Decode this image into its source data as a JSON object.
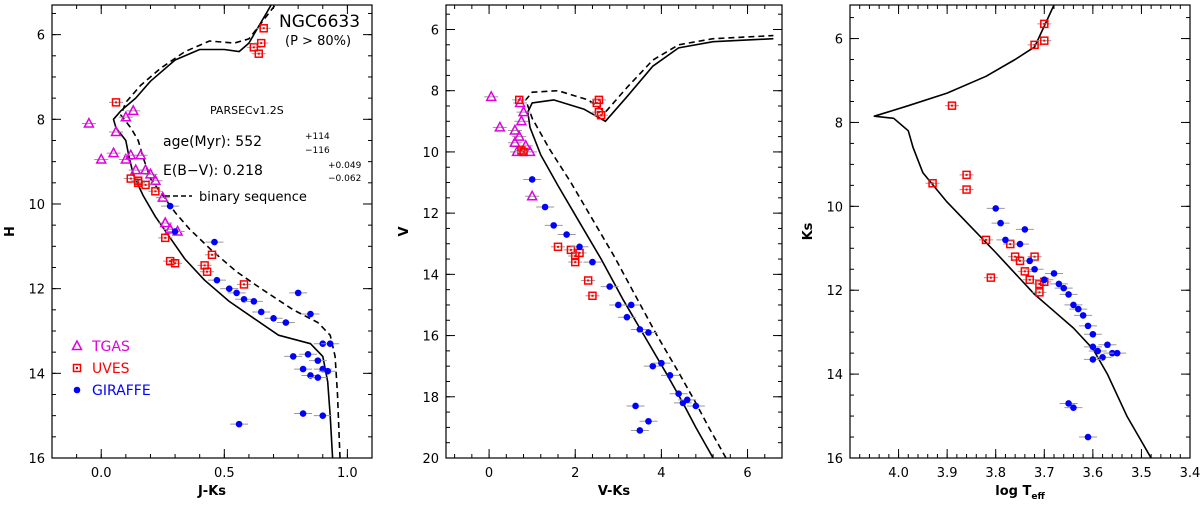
{
  "chart_data": [
    {
      "type": "scatter",
      "title": "NGC6633",
      "subtitle": "(P > 80%)",
      "xlabel": "J-Ks",
      "ylabel": "H",
      "xlim": [
        -0.2,
        1.1
      ],
      "ylim": [
        16,
        5.3
      ],
      "xticks": [
        0.0,
        0.5,
        1.0
      ],
      "xtick_labels": [
        "0.0",
        "0.5",
        "1.0"
      ],
      "yticks": [
        6,
        8,
        10,
        12,
        14,
        16
      ],
      "ytick_labels": [
        "6",
        "8",
        "10",
        "12",
        "14",
        "16"
      ],
      "annotations": {
        "model": "PARSECv1.2S",
        "age_label": "age(Myr): 552",
        "age_plus": "+114",
        "age_minus": "−116",
        "ebv_label": "E(B−V): 0.218",
        "ebv_plus": "+0.049",
        "ebv_minus": "−0.062",
        "binary_label": "binary sequence"
      },
      "legend": {
        "position": "bottom-left",
        "entries": [
          {
            "label": "TGAS",
            "marker": "triangle",
            "color": "#e000e0"
          },
          {
            "label": "UVES",
            "marker": "square",
            "color": "#ff0000"
          },
          {
            "label": "GIRAFFE",
            "marker": "circle",
            "color": "#0000ff"
          }
        ]
      },
      "isochrone": [
        [
          0.94,
          16
        ],
        [
          0.93,
          15
        ],
        [
          0.92,
          14.2
        ],
        [
          0.9,
          13.6
        ],
        [
          0.85,
          13.3
        ],
        [
          0.72,
          13.1
        ],
        [
          0.62,
          12.7
        ],
        [
          0.52,
          12.3
        ],
        [
          0.42,
          11.8
        ],
        [
          0.34,
          11.3
        ],
        [
          0.28,
          10.8
        ],
        [
          0.22,
          10.3
        ],
        [
          0.17,
          9.8
        ],
        [
          0.13,
          9.3
        ],
        [
          0.11,
          8.8
        ],
        [
          0.1,
          8.5
        ],
        [
          0.06,
          8.2
        ],
        [
          0.05,
          8
        ],
        [
          0.08,
          7.8
        ],
        [
          0.14,
          7.5
        ],
        [
          0.2,
          7.1
        ],
        [
          0.3,
          6.6
        ],
        [
          0.4,
          6.35
        ],
        [
          0.5,
          6.35
        ],
        [
          0.56,
          6.4
        ],
        [
          0.6,
          6.2
        ],
        [
          0.63,
          5.9
        ],
        [
          0.67,
          5.5
        ],
        [
          0.7,
          5.2
        ]
      ],
      "binary_sequence": [
        [
          0.97,
          16
        ],
        [
          0.96,
          14.5
        ],
        [
          0.95,
          13.6
        ],
        [
          0.93,
          13.1
        ],
        [
          0.88,
          12.8
        ],
        [
          0.78,
          12.5
        ],
        [
          0.65,
          12
        ],
        [
          0.55,
          11.6
        ],
        [
          0.45,
          11.1
        ],
        [
          0.36,
          10.6
        ],
        [
          0.3,
          10.2
        ],
        [
          0.25,
          9.8
        ],
        [
          0.2,
          9.4
        ],
        [
          0.17,
          8.9
        ],
        [
          0.15,
          8.5
        ],
        [
          0.12,
          8.2
        ],
        [
          0.08,
          7.9
        ],
        [
          0.1,
          7.6
        ],
        [
          0.16,
          7.2
        ],
        [
          0.24,
          6.8
        ],
        [
          0.34,
          6.4
        ],
        [
          0.44,
          6.15
        ],
        [
          0.54,
          6.2
        ],
        [
          0.6,
          6.1
        ],
        [
          0.64,
          5.8
        ],
        [
          0.68,
          5.5
        ],
        [
          0.72,
          5.2
        ]
      ],
      "series": [
        {
          "name": "TGAS",
          "marker": "triangle",
          "color": "#e000e0",
          "x": [
            -0.05,
            0.0,
            0.05,
            0.06,
            0.1,
            0.12,
            0.14,
            0.16,
            0.18,
            0.2,
            0.22,
            0.25,
            0.26,
            0.28,
            0.31,
            0.13,
            0.1
          ],
          "y": [
            8.1,
            8.95,
            8.8,
            8.3,
            8.95,
            8.85,
            9.2,
            8.85,
            9.2,
            9.3,
            9.45,
            9.85,
            10.45,
            10.6,
            10.65,
            7.8,
            7.95
          ]
        },
        {
          "name": "UVES",
          "marker": "square",
          "color": "#ff0000",
          "x": [
            0.06,
            0.12,
            0.15,
            0.18,
            0.22,
            0.26,
            0.28,
            0.3,
            0.42,
            0.43,
            0.45,
            0.58,
            0.64,
            0.15,
            0.62,
            0.65,
            0.66
          ],
          "y": [
            7.6,
            9.4,
            9.5,
            9.55,
            9.7,
            10.8,
            11.35,
            11.4,
            11.45,
            11.6,
            11.2,
            11.9,
            6.45,
            9.45,
            6.3,
            6.2,
            5.85
          ]
        },
        {
          "name": "GIRAFFE",
          "marker": "circle",
          "color": "#0000ff",
          "x": [
            0.28,
            0.3,
            0.46,
            0.47,
            0.52,
            0.55,
            0.58,
            0.62,
            0.65,
            0.7,
            0.75,
            0.8,
            0.85,
            0.9,
            0.93,
            0.78,
            0.82,
            0.84,
            0.88,
            0.9,
            0.92,
            0.85,
            0.88,
            0.56,
            0.82,
            0.9
          ],
          "y": [
            10.05,
            10.65,
            10.9,
            11.8,
            12.0,
            12.1,
            12.25,
            12.3,
            12.55,
            12.7,
            12.8,
            12.1,
            12.6,
            13.3,
            13.3,
            13.6,
            13.9,
            13.55,
            13.7,
            13.9,
            13.95,
            14.05,
            14.1,
            15.2,
            14.95,
            15.0
          ]
        }
      ]
    },
    {
      "type": "scatter",
      "title": "",
      "xlabel": "V-Ks",
      "ylabel": "V",
      "xlim": [
        -1,
        6.8
      ],
      "ylim": [
        20,
        5.2
      ],
      "xticks": [
        0,
        2,
        4,
        6
      ],
      "xtick_labels": [
        "0",
        "2",
        "4",
        "6"
      ],
      "yticks": [
        6,
        8,
        10,
        12,
        14,
        16,
        18,
        20
      ],
      "ytick_labels": [
        "6",
        "8",
        "10",
        "12",
        "14",
        "16",
        "18",
        "20"
      ],
      "isochrone": [
        [
          5.2,
          20
        ],
        [
          4.8,
          19
        ],
        [
          4.5,
          18.2
        ],
        [
          4.1,
          17.2
        ],
        [
          3.6,
          16
        ],
        [
          3.1,
          14.8
        ],
        [
          2.6,
          13.5
        ],
        [
          2.1,
          12.3
        ],
        [
          1.6,
          11.1
        ],
        [
          1.2,
          10.1
        ],
        [
          0.95,
          9.2
        ],
        [
          0.9,
          8.7
        ],
        [
          1.0,
          8.4
        ],
        [
          1.5,
          8.3
        ],
        [
          2.2,
          8.6
        ],
        [
          2.7,
          9.0
        ],
        [
          3.2,
          8.2
        ],
        [
          3.8,
          7.2
        ],
        [
          4.4,
          6.6
        ],
        [
          5.2,
          6.4
        ],
        [
          6.6,
          6.3
        ]
      ],
      "binary_sequence": [
        [
          5.5,
          20
        ],
        [
          5.1,
          19
        ],
        [
          4.8,
          18.2
        ],
        [
          4.4,
          17.2
        ],
        [
          3.9,
          16
        ],
        [
          3.4,
          14.7
        ],
        [
          2.9,
          13.4
        ],
        [
          2.4,
          12.2
        ],
        [
          1.9,
          11
        ],
        [
          1.4,
          9.9
        ],
        [
          1.0,
          8.9
        ],
        [
          0.85,
          8.3
        ],
        [
          1.0,
          8.05
        ],
        [
          1.6,
          8.0
        ],
        [
          2.3,
          8.3
        ],
        [
          2.7,
          8.7
        ],
        [
          3.2,
          7.9
        ],
        [
          3.8,
          7.0
        ],
        [
          4.4,
          6.5
        ],
        [
          5.2,
          6.3
        ],
        [
          6.6,
          6.2
        ]
      ],
      "series": [
        {
          "name": "TGAS",
          "marker": "triangle",
          "color": "#e000e0",
          "x": [
            0.05,
            0.25,
            0.6,
            0.65,
            0.7,
            0.75,
            0.8,
            0.85,
            0.95,
            1.0,
            0.6,
            0.72
          ],
          "y": [
            8.2,
            9.2,
            9.3,
            10.0,
            9.5,
            9.0,
            8.7,
            9.8,
            10.0,
            11.45,
            9.7,
            8.4
          ]
        },
        {
          "name": "UVES",
          "marker": "square",
          "color": "#ff0000",
          "x": [
            0.7,
            0.75,
            0.8,
            1.6,
            1.9,
            2.0,
            2.1,
            2.3,
            2.4,
            2.5,
            2.55,
            2.55,
            2.6,
            2.0
          ],
          "y": [
            8.3,
            9.95,
            10.0,
            13.1,
            13.2,
            13.4,
            13.3,
            14.2,
            14.7,
            8.4,
            8.7,
            8.3,
            8.8,
            13.6
          ]
        },
        {
          "name": "GIRAFFE",
          "marker": "circle",
          "color": "#0000ff",
          "x": [
            1.0,
            1.3,
            1.5,
            1.8,
            2.1,
            2.4,
            2.8,
            3.0,
            3.2,
            3.3,
            3.5,
            3.7,
            3.8,
            4.0,
            4.2,
            4.4,
            4.5,
            4.6,
            4.8,
            3.4,
            3.5,
            3.7
          ],
          "y": [
            10.9,
            11.8,
            12.4,
            12.7,
            13.1,
            13.6,
            14.4,
            15.0,
            15.4,
            15.0,
            15.8,
            15.9,
            17.0,
            16.9,
            17.3,
            17.9,
            18.2,
            18.1,
            18.3,
            18.3,
            19.1,
            18.8
          ]
        }
      ]
    },
    {
      "type": "scatter",
      "title": "",
      "xlabel": "log T",
      "xlabel_sub": "eff",
      "ylabel": "Ks",
      "xlim": [
        4.1,
        3.4
      ],
      "ylim": [
        16,
        5.2
      ],
      "xticks": [
        4.0,
        3.9,
        3.8,
        3.7,
        3.6,
        3.5,
        3.4
      ],
      "xtick_labels": [
        "4.0",
        "3.9",
        "3.8",
        "3.7",
        "3.6",
        "3.5",
        "3.4"
      ],
      "yticks": [
        6,
        8,
        10,
        12,
        14,
        16
      ],
      "ytick_labels": [
        "6",
        "8",
        "10",
        "12",
        "14",
        "16"
      ],
      "isochrone": [
        [
          3.48,
          16
        ],
        [
          3.53,
          15
        ],
        [
          3.57,
          14
        ],
        [
          3.6,
          13.4
        ],
        [
          3.64,
          12.9
        ],
        [
          3.68,
          12.5
        ],
        [
          3.72,
          12.1
        ],
        [
          3.76,
          11.6
        ],
        [
          3.8,
          11.1
        ],
        [
          3.85,
          10.5
        ],
        [
          3.9,
          9.9
        ],
        [
          3.95,
          9.2
        ],
        [
          3.97,
          8.6
        ],
        [
          3.98,
          8.2
        ],
        [
          4.01,
          7.9
        ],
        [
          4.05,
          7.85
        ],
        [
          3.98,
          7.6
        ],
        [
          3.9,
          7.3
        ],
        [
          3.82,
          6.9
        ],
        [
          3.76,
          6.5
        ],
        [
          3.72,
          6.2
        ],
        [
          3.7,
          5.7
        ],
        [
          3.68,
          5.2
        ]
      ],
      "series": [
        {
          "name": "UVES",
          "marker": "square",
          "color": "#ff0000",
          "x": [
            3.89,
            3.93,
            3.86,
            3.86,
            3.82,
            3.81,
            3.77,
            3.76,
            3.75,
            3.74,
            3.73,
            3.72,
            3.71,
            3.7,
            3.71,
            3.7,
            3.72,
            3.7
          ],
          "y": [
            7.6,
            9.45,
            9.25,
            9.6,
            10.8,
            11.7,
            10.9,
            11.2,
            11.3,
            11.55,
            11.75,
            11.2,
            11.85,
            11.8,
            12.05,
            5.65,
            6.15,
            6.05
          ]
        },
        {
          "name": "GIRAFFE",
          "marker": "circle",
          "color": "#0000ff",
          "x": [
            3.8,
            3.79,
            3.78,
            3.75,
            3.74,
            3.73,
            3.72,
            3.7,
            3.68,
            3.67,
            3.66,
            3.65,
            3.64,
            3.63,
            3.62,
            3.61,
            3.6,
            3.6,
            3.59,
            3.58,
            3.57,
            3.56,
            3.55,
            3.6,
            3.65,
            3.64,
            3.61
          ],
          "y": [
            10.05,
            10.4,
            10.8,
            10.9,
            10.55,
            11.3,
            11.5,
            11.75,
            11.6,
            11.85,
            11.95,
            12.1,
            12.35,
            12.45,
            12.6,
            12.85,
            13.05,
            13.35,
            13.45,
            13.6,
            13.3,
            13.5,
            13.5,
            13.65,
            14.7,
            14.8,
            15.5
          ]
        }
      ]
    }
  ]
}
